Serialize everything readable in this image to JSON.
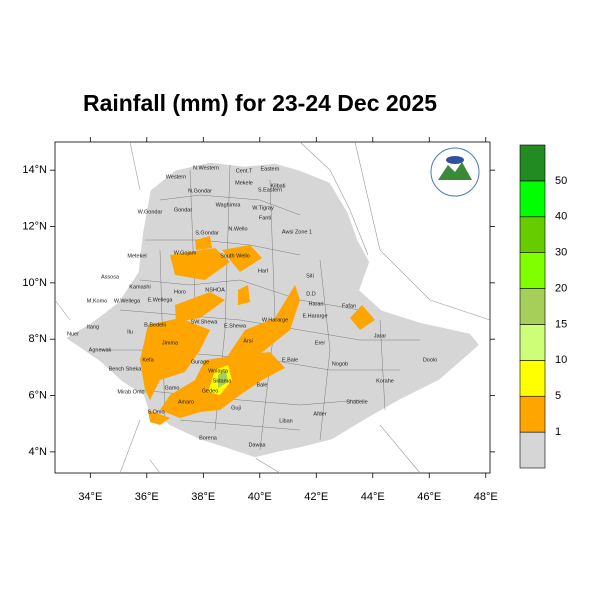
{
  "chart_data": {
    "type": "map",
    "title": "Rainfall (mm) for 23-24 Dec 2025",
    "xlim": [
      32.75,
      48.15
    ],
    "ylim": [
      3.25,
      15.0
    ],
    "xticks": [
      {
        "value": 34,
        "label": "34°E"
      },
      {
        "value": 36,
        "label": "36°E"
      },
      {
        "value": 38,
        "label": "38°E"
      },
      {
        "value": 40,
        "label": "40°E"
      },
      {
        "value": 42,
        "label": "42°E"
      },
      {
        "value": 44,
        "label": "44°E"
      },
      {
        "value": 46,
        "label": "46°E"
      },
      {
        "value": 48,
        "label": "48°E"
      }
    ],
    "yticks": [
      {
        "value": 4,
        "label": "4°N"
      },
      {
        "value": 6,
        "label": "6°N"
      },
      {
        "value": 8,
        "label": "8°N"
      },
      {
        "value": 10,
        "label": "10°N"
      },
      {
        "value": 12,
        "label": "12°N"
      },
      {
        "value": 14,
        "label": "14°N"
      }
    ],
    "colorbar": {
      "levels": [
        1,
        5,
        10,
        15,
        20,
        30,
        40,
        50
      ],
      "colors": [
        "#d6d6d6",
        "#ffa500",
        "#ffff00",
        "#ccff77",
        "#a6cf5a",
        "#80ff00",
        "#66cc00",
        "#00ff00",
        "#228b22"
      ]
    },
    "regions": [
      "Western",
      "N.Western",
      "Cent.T",
      "Eastern",
      "Mekele",
      "S.Eastern",
      "Kilbati",
      "N.Gondar",
      "W.Gondar",
      "Gondar",
      "Waghimra",
      "W.Tigray",
      "Fanti",
      "S.Gondar",
      "N.Wello",
      "Awsi Zone 1",
      "Metekel",
      "W.Gojam",
      "South Wello",
      "Harl",
      "Siti",
      "Assosa",
      "Kamashi",
      "Horo",
      "NSHOA",
      "D.D",
      "Harari",
      "M.Komo",
      "W.Wellega",
      "E.Wellega",
      "Fafan",
      "E.Hararge",
      "W.Hararge",
      "Jarar",
      "Nuer",
      "Itang",
      "Ilu",
      "B.Bedelli",
      "SW.Shewa",
      "E.Shewa",
      "Arsi",
      "Erer",
      "Agnewak",
      "Jimma",
      "Gurage",
      "Doolo",
      "Nogob",
      "E.Bale",
      "Kefa",
      "Bench Sheka",
      "Wolayta",
      "Sidama",
      "Bale",
      "Korahe",
      "Mirab Omo",
      "Gamo",
      "Gedeo",
      "Shabelle",
      "S.Omo",
      "Amaro",
      "Guji",
      "Afder",
      "Liban",
      "Borena",
      "Dawaa"
    ]
  }
}
